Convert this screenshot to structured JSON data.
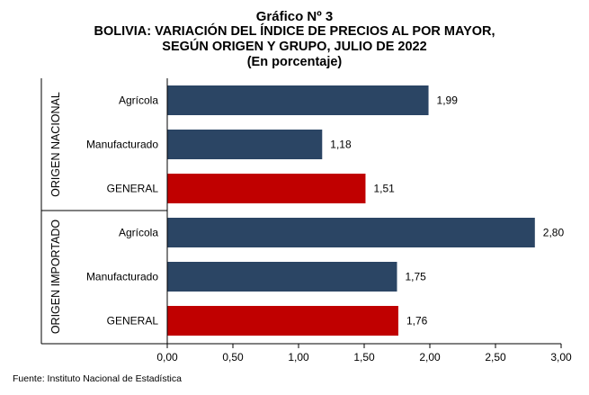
{
  "titles": {
    "line1": "Gráfico Nº 3",
    "line2": "BOLIVIA: VARIACIÓN DEL ÍNDICE DE PRECIOS AL POR MAYOR,",
    "line3": "SEGÚN ORIGEN Y GRUPO, JULIO DE 2022",
    "line4": "(En porcentaje)"
  },
  "footer": {
    "source": "Fuente: Instituto Nacional de Estadística"
  },
  "colors": {
    "bar": "#2b4564",
    "bar_general": "#c00000",
    "axis": "#000000"
  },
  "chart_data": {
    "type": "bar",
    "orientation": "horizontal",
    "groups": [
      {
        "label": "ORIGEN NACIONAL",
        "items": [
          {
            "category": "Agrícola",
            "value": 1.99,
            "label": "1,99"
          },
          {
            "category": "Manufacturado",
            "value": 1.18,
            "label": "1,18"
          },
          {
            "category": "GENERAL",
            "value": 1.51,
            "label": "1,51",
            "highlight": true
          }
        ]
      },
      {
        "label": "ORIGEN IMPORTADO",
        "items": [
          {
            "category": "Agrícola",
            "value": 2.8,
            "label": "2,80"
          },
          {
            "category": "Manufacturado",
            "value": 1.75,
            "label": "1,75"
          },
          {
            "category": "GENERAL",
            "value": 1.76,
            "label": "1,76",
            "highlight": true
          }
        ]
      }
    ],
    "xlim": [
      0,
      3
    ],
    "xticks": [
      0,
      0.5,
      1,
      1.5,
      2,
      2.5,
      3
    ],
    "xtick_labels": [
      "0,00",
      "0,50",
      "1,00",
      "1,50",
      "2,00",
      "2,50",
      "3,00"
    ],
    "grid": false,
    "legend": "none"
  }
}
